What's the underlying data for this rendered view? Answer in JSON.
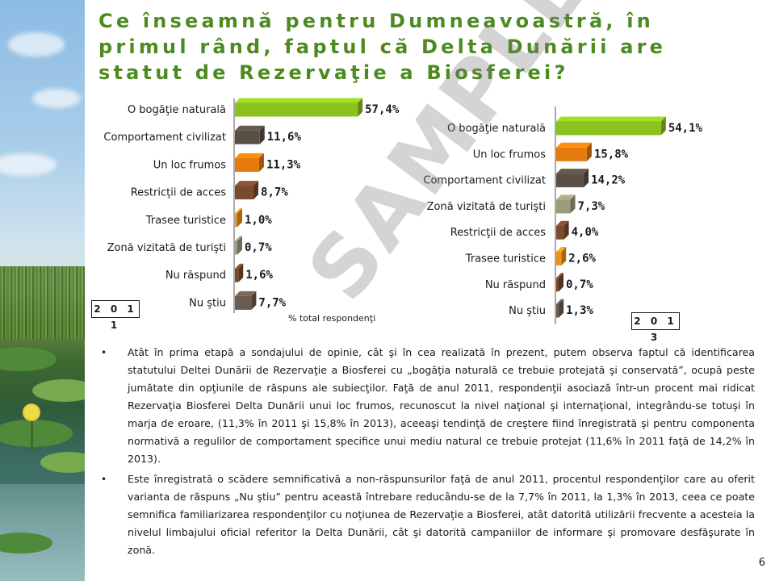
{
  "title": "Ce înseamnă pentru Dumneavoastră, în primul rând, faptul că Delta Dunării are statut de Rezervaţie a Biosferei?",
  "watermark": "SAMPLE",
  "colors": {
    "title": "#4d8a1f",
    "bar_green": "#8cc21e",
    "bar_dark": "#5a4f45",
    "bar_orange": "#e47b0c",
    "bar_brown": "#7a4a2c",
    "bar_olive": "#9a9c7c",
    "bar_darkbrown": "#5e3a24"
  },
  "chart_data": [
    {
      "type": "bar",
      "orientation": "horizontal",
      "year": "2 0 1 1",
      "xlabel": "% total respondenţi",
      "categories": [
        "O bogăţie naturală",
        "Comportament civilizat",
        "Un loc frumos",
        "Restricţii de acces",
        "Trasee turistice",
        "Zonă vizitată de turişti",
        "Nu răspund",
        "Nu ştiu"
      ],
      "values": [
        57.4,
        11.6,
        11.3,
        8.7,
        1.0,
        0.7,
        1.6,
        7.7
      ],
      "labels": [
        "57,4%",
        "11,6%",
        "11,3%",
        "8,7%",
        "1,0%",
        "0,7%",
        "1,6%",
        "7,7%"
      ],
      "colors": [
        "#8cc21e",
        "#5a4f45",
        "#e47b0c",
        "#7a4a2c",
        "#e8951a",
        "#9a9c7c",
        "#7a4a2c",
        "#6b5c50"
      ]
    },
    {
      "type": "bar",
      "orientation": "horizontal",
      "year": "2 0 1 3",
      "categories": [
        "O bogăţie naturală",
        "Un loc frumos",
        "Comportament civilizat",
        "Zonă vizitată de turişti",
        "Restricţii de acces",
        "Trasee turistice",
        "Nu răspund",
        "Nu ştiu"
      ],
      "values": [
        54.1,
        15.8,
        14.2,
        7.3,
        4.0,
        2.6,
        0.7,
        1.3
      ],
      "labels": [
        "54,1%",
        "15,8%",
        "14,2%",
        "7,3%",
        "4,0%",
        "2,6%",
        "0,7%",
        "1,3%"
      ],
      "colors": [
        "#8cc21e",
        "#e47b0c",
        "#5a4f45",
        "#9a9c7c",
        "#7a4a2c",
        "#e8951a",
        "#7a4a2c",
        "#6b5c50"
      ]
    }
  ],
  "bullets": [
    "Atât în prima etapă a sondajului de opinie, cât şi în cea realizată în prezent, putem observa faptul că identificarea statutului Deltei Dunării de Rezervaţie a Biosferei cu „bogăţia naturală ce trebuie protejată şi conservată”, ocupă peste jumătate din opţiunile de răspuns ale subiecţilor. Faţă de anul 2011, respondenţii asociază într-un procent mai ridicat Rezervaţia Biosferei Delta Dunării unui loc frumos, recunoscut la nivel naţional şi internaţional, integrându-se totuşi în marja de eroare, (11,3% în 2011 şi 15,8% în 2013), aceeaşi tendinţă de creştere fiind înregistrată şi pentru componenta normativă a regulilor de comportament specifice unui mediu natural ce trebuie protejat (11,6% în 2011 faţă de 14,2% în 2013).",
    "Este înregistrată o scădere semnificativă a non-răspunsurilor faţă de anul 2011, procentul respondenţilor care au oferit varianta de răspuns „Nu ştiu” pentru această întrebare reducându-se de la 7,7% în 2011, la 1,3% în 2013, ceea ce poate semnifica familiarizarea respondenţilor cu noţiunea de Rezervaţie a Biosferei, atât datorită utilizării frecvente a acesteia la nivelul limbajului oficial referitor la Delta Dunării, cât şi datorită campaniilor de informare şi promovare desfăşurate în zonă."
  ],
  "page_number": "6"
}
